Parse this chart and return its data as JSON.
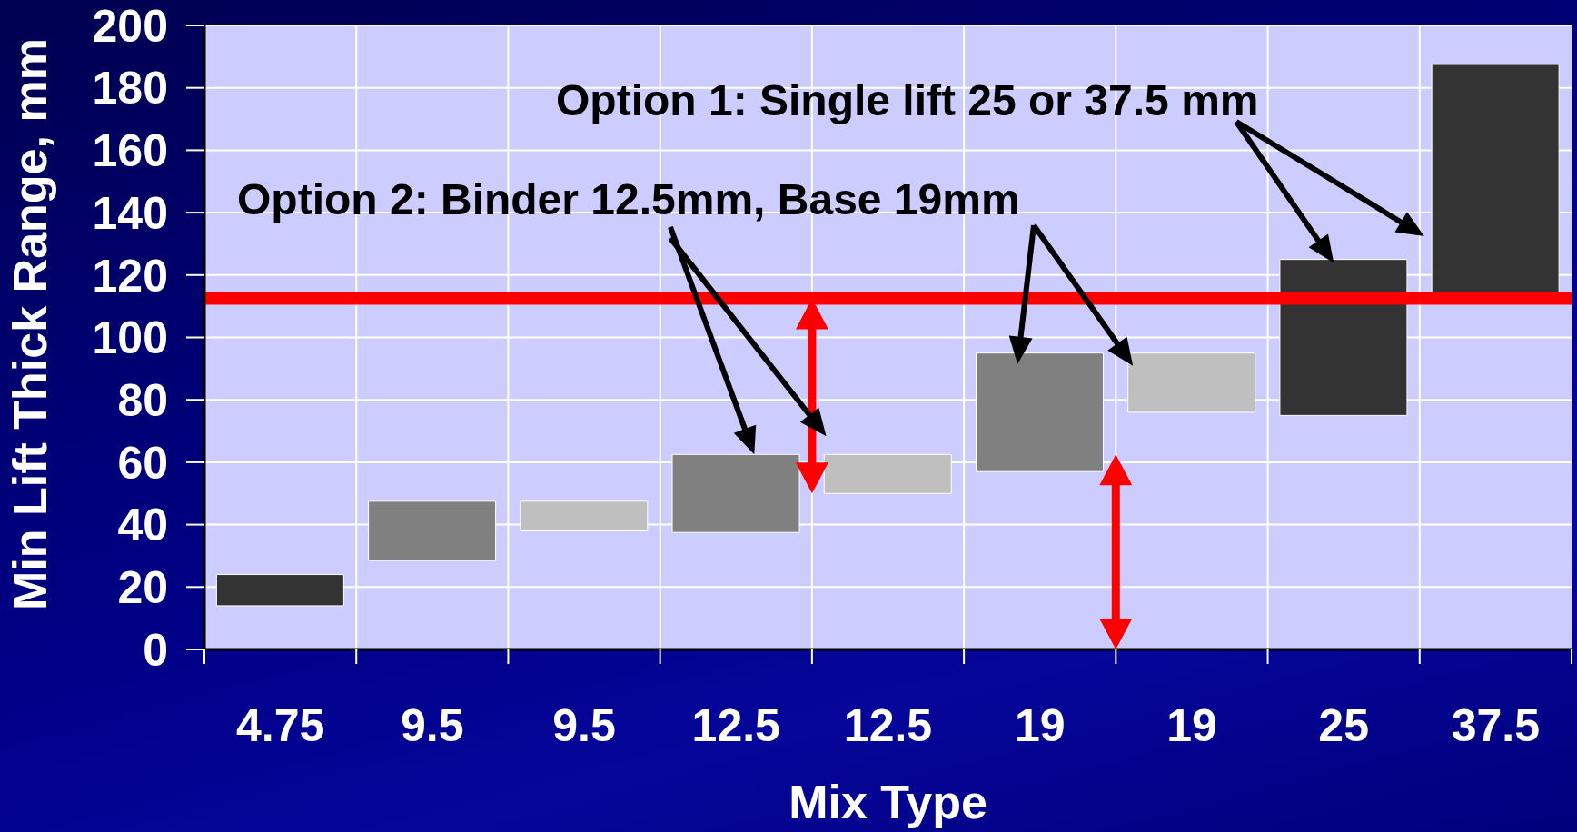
{
  "chart_data": {
    "type": "bar",
    "xlabel": "Mix Type",
    "ylabel": "Min Lift Thick Range, mm",
    "categories": [
      "4.75",
      "9.5",
      "9.5",
      "12.5",
      "12.5",
      "19",
      "19",
      "25",
      "37.5"
    ],
    "base": [
      14,
      28.5,
      38,
      37.5,
      50,
      57,
      76,
      75,
      112.5
    ],
    "values": [
      10,
      19,
      9.5,
      25,
      12.5,
      38,
      19,
      50,
      75
    ],
    "colors": [
      "#333333",
      "#808080",
      "#bfbfbf",
      "#808080",
      "#bfbfbf",
      "#808080",
      "#bfbfbf",
      "#333333",
      "#333333"
    ],
    "ylim": [
      0,
      200
    ],
    "yticks": [
      0,
      20,
      40,
      60,
      80,
      100,
      120,
      140,
      160,
      180,
      200
    ],
    "grid": true,
    "ref_lines": [
      {
        "axis": "y",
        "value": 112.5,
        "color": "#ff0000"
      }
    ],
    "annotations": [
      "Option 1: Single lift 25 or 37.5 mm",
      "Option 2: Binder 12.5mm, Base 19mm"
    ]
  }
}
